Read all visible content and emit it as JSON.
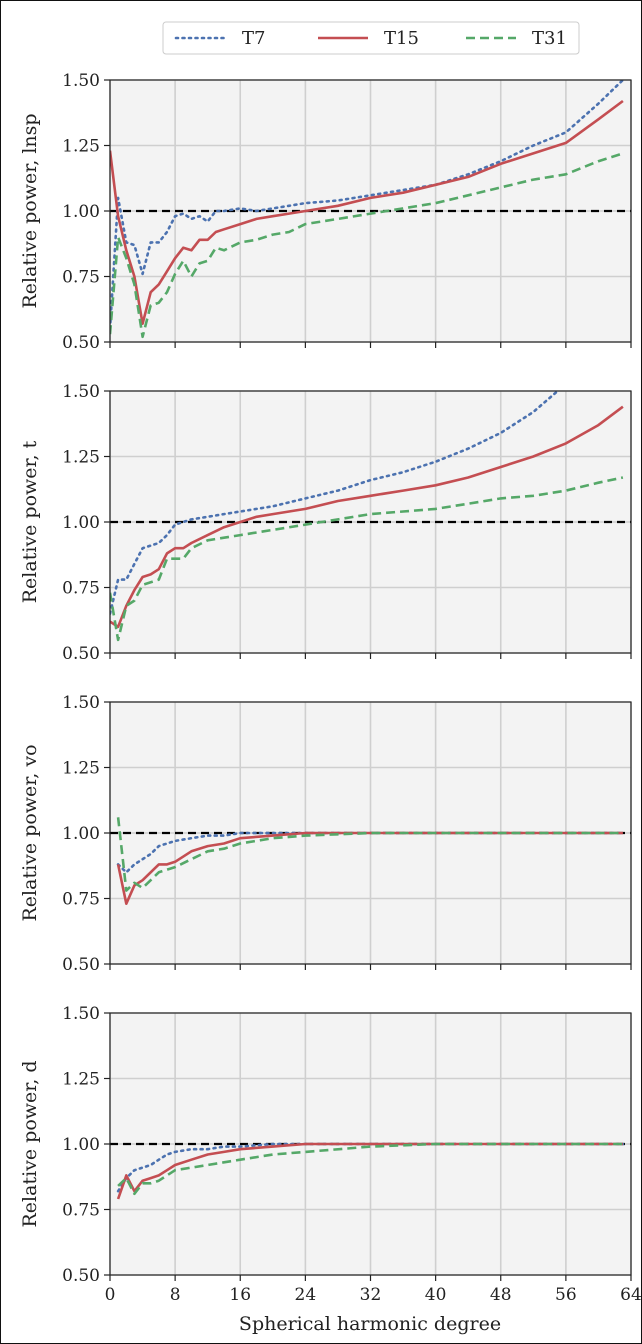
{
  "chart_data": {
    "type": "line",
    "xlabel": "Spherical harmonic degree",
    "xlim": [
      0,
      64
    ],
    "x_ticks": [
      0,
      8,
      16,
      24,
      32,
      40,
      48,
      56,
      64
    ],
    "y_ticks": [
      0.5,
      0.75,
      1.0,
      1.25,
      1.5
    ],
    "x_tick_labels": [
      "0",
      "8",
      "16",
      "24",
      "32",
      "40",
      "48",
      "56",
      "64"
    ],
    "y_tick_labels": [
      "0.50",
      "0.75",
      "1.00",
      "1.25",
      "1.50"
    ],
    "legend": {
      "placement": "top-center",
      "entries": [
        "T7",
        "T15",
        "T31"
      ]
    },
    "reference_line": {
      "y": 1.0,
      "style": "dashed",
      "color": "#000000"
    },
    "series_styles": [
      {
        "name": "T7",
        "color": "#4c72b0",
        "dash": "dotted"
      },
      {
        "name": "T15",
        "color": "#c44e52",
        "dash": "solid"
      },
      {
        "name": "T31",
        "color": "#55a868",
        "dash": "dashed"
      }
    ],
    "grid": true,
    "panels": [
      {
        "ylabel": "Relative power, lnsp",
        "ylim": [
          0.5,
          1.5
        ],
        "series": [
          {
            "name": "T7",
            "x": [
              0,
              1,
              2,
              3,
              4,
              5,
              6,
              7,
              8,
              9,
              10,
              11,
              12,
              13,
              14,
              16,
              18,
              20,
              22,
              24,
              28,
              32,
              36,
              40,
              44,
              48,
              52,
              56,
              60,
              63
            ],
            "y": [
              0.55,
              1.05,
              0.88,
              0.87,
              0.76,
              0.88,
              0.88,
              0.92,
              0.98,
              0.99,
              0.97,
              0.98,
              0.96,
              1.0,
              1.0,
              1.01,
              1.0,
              1.01,
              1.02,
              1.03,
              1.04,
              1.06,
              1.08,
              1.1,
              1.14,
              1.19,
              1.25,
              1.3,
              1.41,
              1.5
            ]
          },
          {
            "name": "T15",
            "x": [
              0,
              1,
              2,
              3,
              4,
              5,
              6,
              7,
              8,
              9,
              10,
              11,
              12,
              13,
              14,
              16,
              18,
              20,
              22,
              24,
              28,
              32,
              36,
              40,
              44,
              48,
              52,
              56,
              60,
              63
            ],
            "y": [
              1.23,
              0.98,
              0.85,
              0.75,
              0.57,
              0.69,
              0.72,
              0.77,
              0.82,
              0.86,
              0.85,
              0.89,
              0.89,
              0.92,
              0.93,
              0.95,
              0.97,
              0.98,
              0.99,
              1.0,
              1.02,
              1.05,
              1.07,
              1.1,
              1.13,
              1.18,
              1.22,
              1.26,
              1.35,
              1.42
            ]
          },
          {
            "name": "T31",
            "x": [
              0,
              1,
              2,
              3,
              4,
              5,
              6,
              7,
              8,
              9,
              10,
              11,
              12,
              13,
              14,
              16,
              18,
              20,
              22,
              24,
              28,
              32,
              36,
              40,
              44,
              48,
              52,
              56,
              60,
              63
            ],
            "y": [
              0.53,
              0.9,
              0.82,
              0.72,
              0.52,
              0.64,
              0.65,
              0.69,
              0.76,
              0.81,
              0.75,
              0.8,
              0.81,
              0.86,
              0.85,
              0.88,
              0.89,
              0.91,
              0.92,
              0.95,
              0.97,
              0.99,
              1.01,
              1.03,
              1.06,
              1.09,
              1.12,
              1.14,
              1.19,
              1.22
            ]
          }
        ]
      },
      {
        "ylabel": "Relative power, t",
        "ylim": [
          0.5,
          1.5
        ],
        "series": [
          {
            "name": "T7",
            "x": [
              0,
              1,
              2,
              3,
              4,
              5,
              6,
              7,
              8,
              9,
              10,
              12,
              14,
              16,
              18,
              20,
              24,
              28,
              32,
              36,
              40,
              44,
              48,
              52,
              55
            ],
            "y": [
              0.65,
              0.78,
              0.78,
              0.84,
              0.9,
              0.91,
              0.92,
              0.95,
              0.99,
              1.0,
              1.01,
              1.02,
              1.03,
              1.04,
              1.05,
              1.06,
              1.09,
              1.12,
              1.16,
              1.19,
              1.23,
              1.28,
              1.34,
              1.42,
              1.5
            ]
          },
          {
            "name": "T15",
            "x": [
              0,
              1,
              2,
              3,
              4,
              5,
              6,
              7,
              8,
              9,
              10,
              12,
              14,
              16,
              18,
              20,
              24,
              28,
              32,
              36,
              40,
              44,
              48,
              52,
              56,
              60,
              63
            ],
            "y": [
              0.62,
              0.6,
              0.68,
              0.74,
              0.79,
              0.8,
              0.82,
              0.88,
              0.9,
              0.9,
              0.92,
              0.95,
              0.98,
              1.0,
              1.02,
              1.03,
              1.05,
              1.08,
              1.1,
              1.12,
              1.14,
              1.17,
              1.21,
              1.25,
              1.3,
              1.37,
              1.44
            ]
          },
          {
            "name": "T31",
            "x": [
              0,
              1,
              2,
              3,
              4,
              5,
              6,
              7,
              8,
              9,
              10,
              12,
              14,
              16,
              18,
              20,
              24,
              28,
              32,
              36,
              40,
              44,
              48,
              52,
              56,
              60,
              63
            ],
            "y": [
              0.73,
              0.55,
              0.68,
              0.7,
              0.76,
              0.77,
              0.78,
              0.86,
              0.86,
              0.86,
              0.9,
              0.93,
              0.94,
              0.95,
              0.96,
              0.97,
              0.99,
              1.01,
              1.03,
              1.04,
              1.05,
              1.07,
              1.09,
              1.1,
              1.12,
              1.15,
              1.17
            ]
          }
        ]
      },
      {
        "ylabel": "Relative power, vo",
        "ylim": [
          0.5,
          1.5
        ],
        "series": [
          {
            "name": "T7",
            "x": [
              1,
              2,
              3,
              4,
              5,
              6,
              7,
              8,
              10,
              12,
              14,
              16,
              20,
              24,
              32,
              40,
              48,
              56,
              63
            ],
            "y": [
              0.88,
              0.85,
              0.88,
              0.9,
              0.92,
              0.95,
              0.96,
              0.97,
              0.98,
              0.99,
              0.99,
              1.0,
              1.0,
              1.0,
              1.0,
              1.0,
              1.0,
              1.0,
              1.0
            ]
          },
          {
            "name": "T15",
            "x": [
              1,
              2,
              3,
              4,
              5,
              6,
              7,
              8,
              10,
              12,
              14,
              16,
              20,
              24,
              32,
              40,
              48,
              56,
              63
            ],
            "y": [
              0.88,
              0.73,
              0.8,
              0.82,
              0.85,
              0.88,
              0.88,
              0.89,
              0.93,
              0.95,
              0.96,
              0.98,
              0.99,
              1.0,
              1.0,
              1.0,
              1.0,
              1.0,
              1.0
            ]
          },
          {
            "name": "T31",
            "x": [
              1,
              2,
              3,
              4,
              5,
              6,
              7,
              8,
              10,
              12,
              14,
              16,
              20,
              24,
              32,
              40,
              48,
              56,
              63
            ],
            "y": [
              1.06,
              0.78,
              0.81,
              0.79,
              0.82,
              0.85,
              0.86,
              0.87,
              0.9,
              0.93,
              0.94,
              0.96,
              0.98,
              0.99,
              1.0,
              1.0,
              1.0,
              1.0,
              1.0
            ]
          }
        ]
      },
      {
        "ylabel": "Relative power, d",
        "ylim": [
          0.5,
          1.5
        ],
        "series": [
          {
            "name": "T7",
            "x": [
              1,
              2,
              3,
              4,
              5,
              6,
              7,
              8,
              10,
              12,
              14,
              16,
              20,
              24,
              32,
              40,
              48,
              56,
              63
            ],
            "y": [
              0.82,
              0.87,
              0.9,
              0.91,
              0.92,
              0.94,
              0.96,
              0.97,
              0.98,
              0.98,
              0.99,
              0.99,
              1.0,
              1.0,
              1.0,
              1.0,
              1.0,
              1.0,
              1.0
            ]
          },
          {
            "name": "T15",
            "x": [
              1,
              2,
              3,
              4,
              5,
              6,
              7,
              8,
              10,
              12,
              14,
              16,
              20,
              24,
              32,
              40,
              48,
              56,
              63
            ],
            "y": [
              0.79,
              0.88,
              0.82,
              0.86,
              0.87,
              0.88,
              0.9,
              0.92,
              0.94,
              0.96,
              0.97,
              0.98,
              0.99,
              1.0,
              1.0,
              1.0,
              1.0,
              1.0,
              1.0
            ]
          },
          {
            "name": "T31",
            "x": [
              1,
              2,
              3,
              4,
              5,
              6,
              7,
              8,
              10,
              12,
              14,
              16,
              20,
              24,
              32,
              40,
              48,
              56,
              63
            ],
            "y": [
              0.84,
              0.87,
              0.81,
              0.85,
              0.85,
              0.86,
              0.88,
              0.9,
              0.91,
              0.92,
              0.93,
              0.94,
              0.96,
              0.97,
              0.99,
              1.0,
              1.0,
              1.0,
              1.0
            ]
          }
        ]
      }
    ]
  }
}
